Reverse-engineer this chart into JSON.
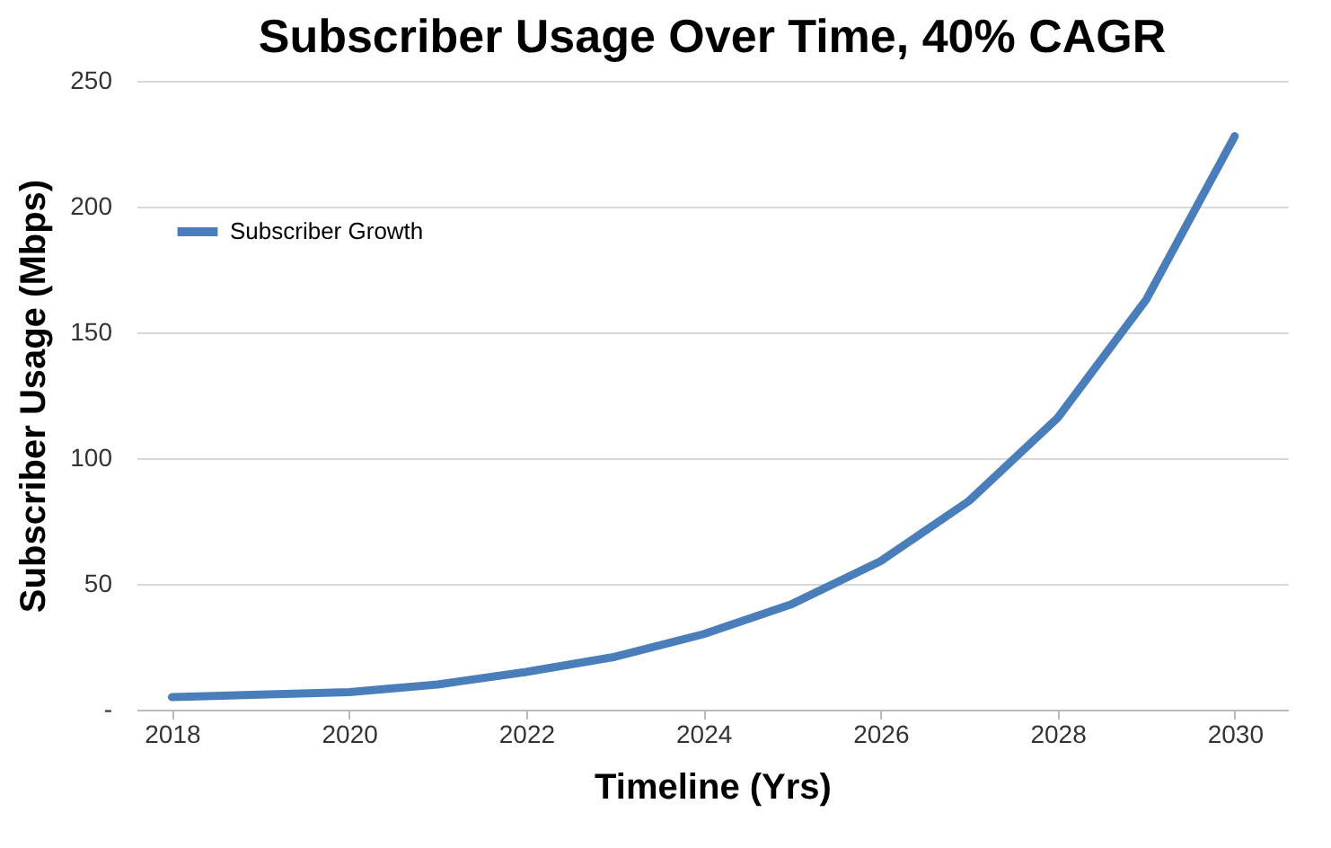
{
  "chart_data": {
    "type": "line",
    "title": "Subscriber Usage Over Time, 40% CAGR",
    "xlabel": "Timeline (Yrs)",
    "ylabel": "Subscriber Usage (Mbps)",
    "x": [
      2018,
      2019,
      2020,
      2021,
      2022,
      2023,
      2024,
      2025,
      2026,
      2027,
      2028,
      2029,
      2030
    ],
    "series": [
      {
        "name": "Subscriber Growth",
        "color": "#4a7ebb",
        "values": [
          5,
          6,
          7,
          10,
          15,
          21,
          30,
          42,
          59,
          83,
          116,
          163,
          228
        ]
      }
    ],
    "xlim": [
      2017.6,
      2030.6
    ],
    "xticks": [
      2018,
      2020,
      2022,
      2024,
      2026,
      2028,
      2030
    ],
    "ylim": [
      0,
      250
    ],
    "yticks": [
      {
        "value": 0,
        "label": "-"
      },
      50,
      100,
      150,
      200,
      250
    ],
    "grid": "y",
    "legend": "top left",
    "marker": "none",
    "line_style": "solid"
  }
}
